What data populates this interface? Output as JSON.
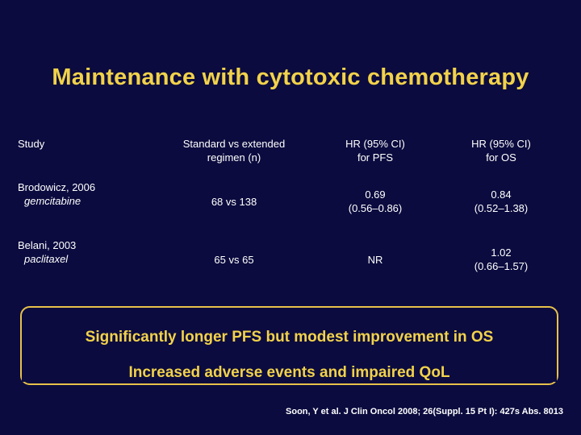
{
  "title": "Maintenance with cytotoxic chemotherapy",
  "table": {
    "headers": {
      "study": "Study",
      "regimen": [
        "Standard vs extended",
        "regimen (n)"
      ],
      "pfs": [
        "HR (95% CI)",
        "for PFS"
      ],
      "os": [
        "HR (95% CI)",
        "for OS"
      ]
    },
    "rows": [
      {
        "study": "Brodowicz, 2006",
        "drug": "gemcitabine",
        "regimen": "68 vs 138",
        "pfs": [
          "0.69",
          "(0.56–0.86)"
        ],
        "os": [
          "0.84",
          "(0.52–1.38)"
        ]
      },
      {
        "study": "Belani, 2003",
        "drug": "paclitaxel",
        "regimen": "65 vs 65",
        "pfs": [
          "NR"
        ],
        "os": [
          "1.02",
          "(0.66–1.57)"
        ]
      }
    ]
  },
  "callout": {
    "line1": "Significantly longer PFS but modest improvement in OS",
    "line2": "Increased adverse events and impaired QoL"
  },
  "citation": "Soon, Y et al. J Clin Oncol 2008; 26(Suppl. 15 Pt I): 427s Abs. 8013",
  "colors": {
    "background": "#0b0b3f",
    "accent": "#f2d24a",
    "text": "#ffffff"
  }
}
